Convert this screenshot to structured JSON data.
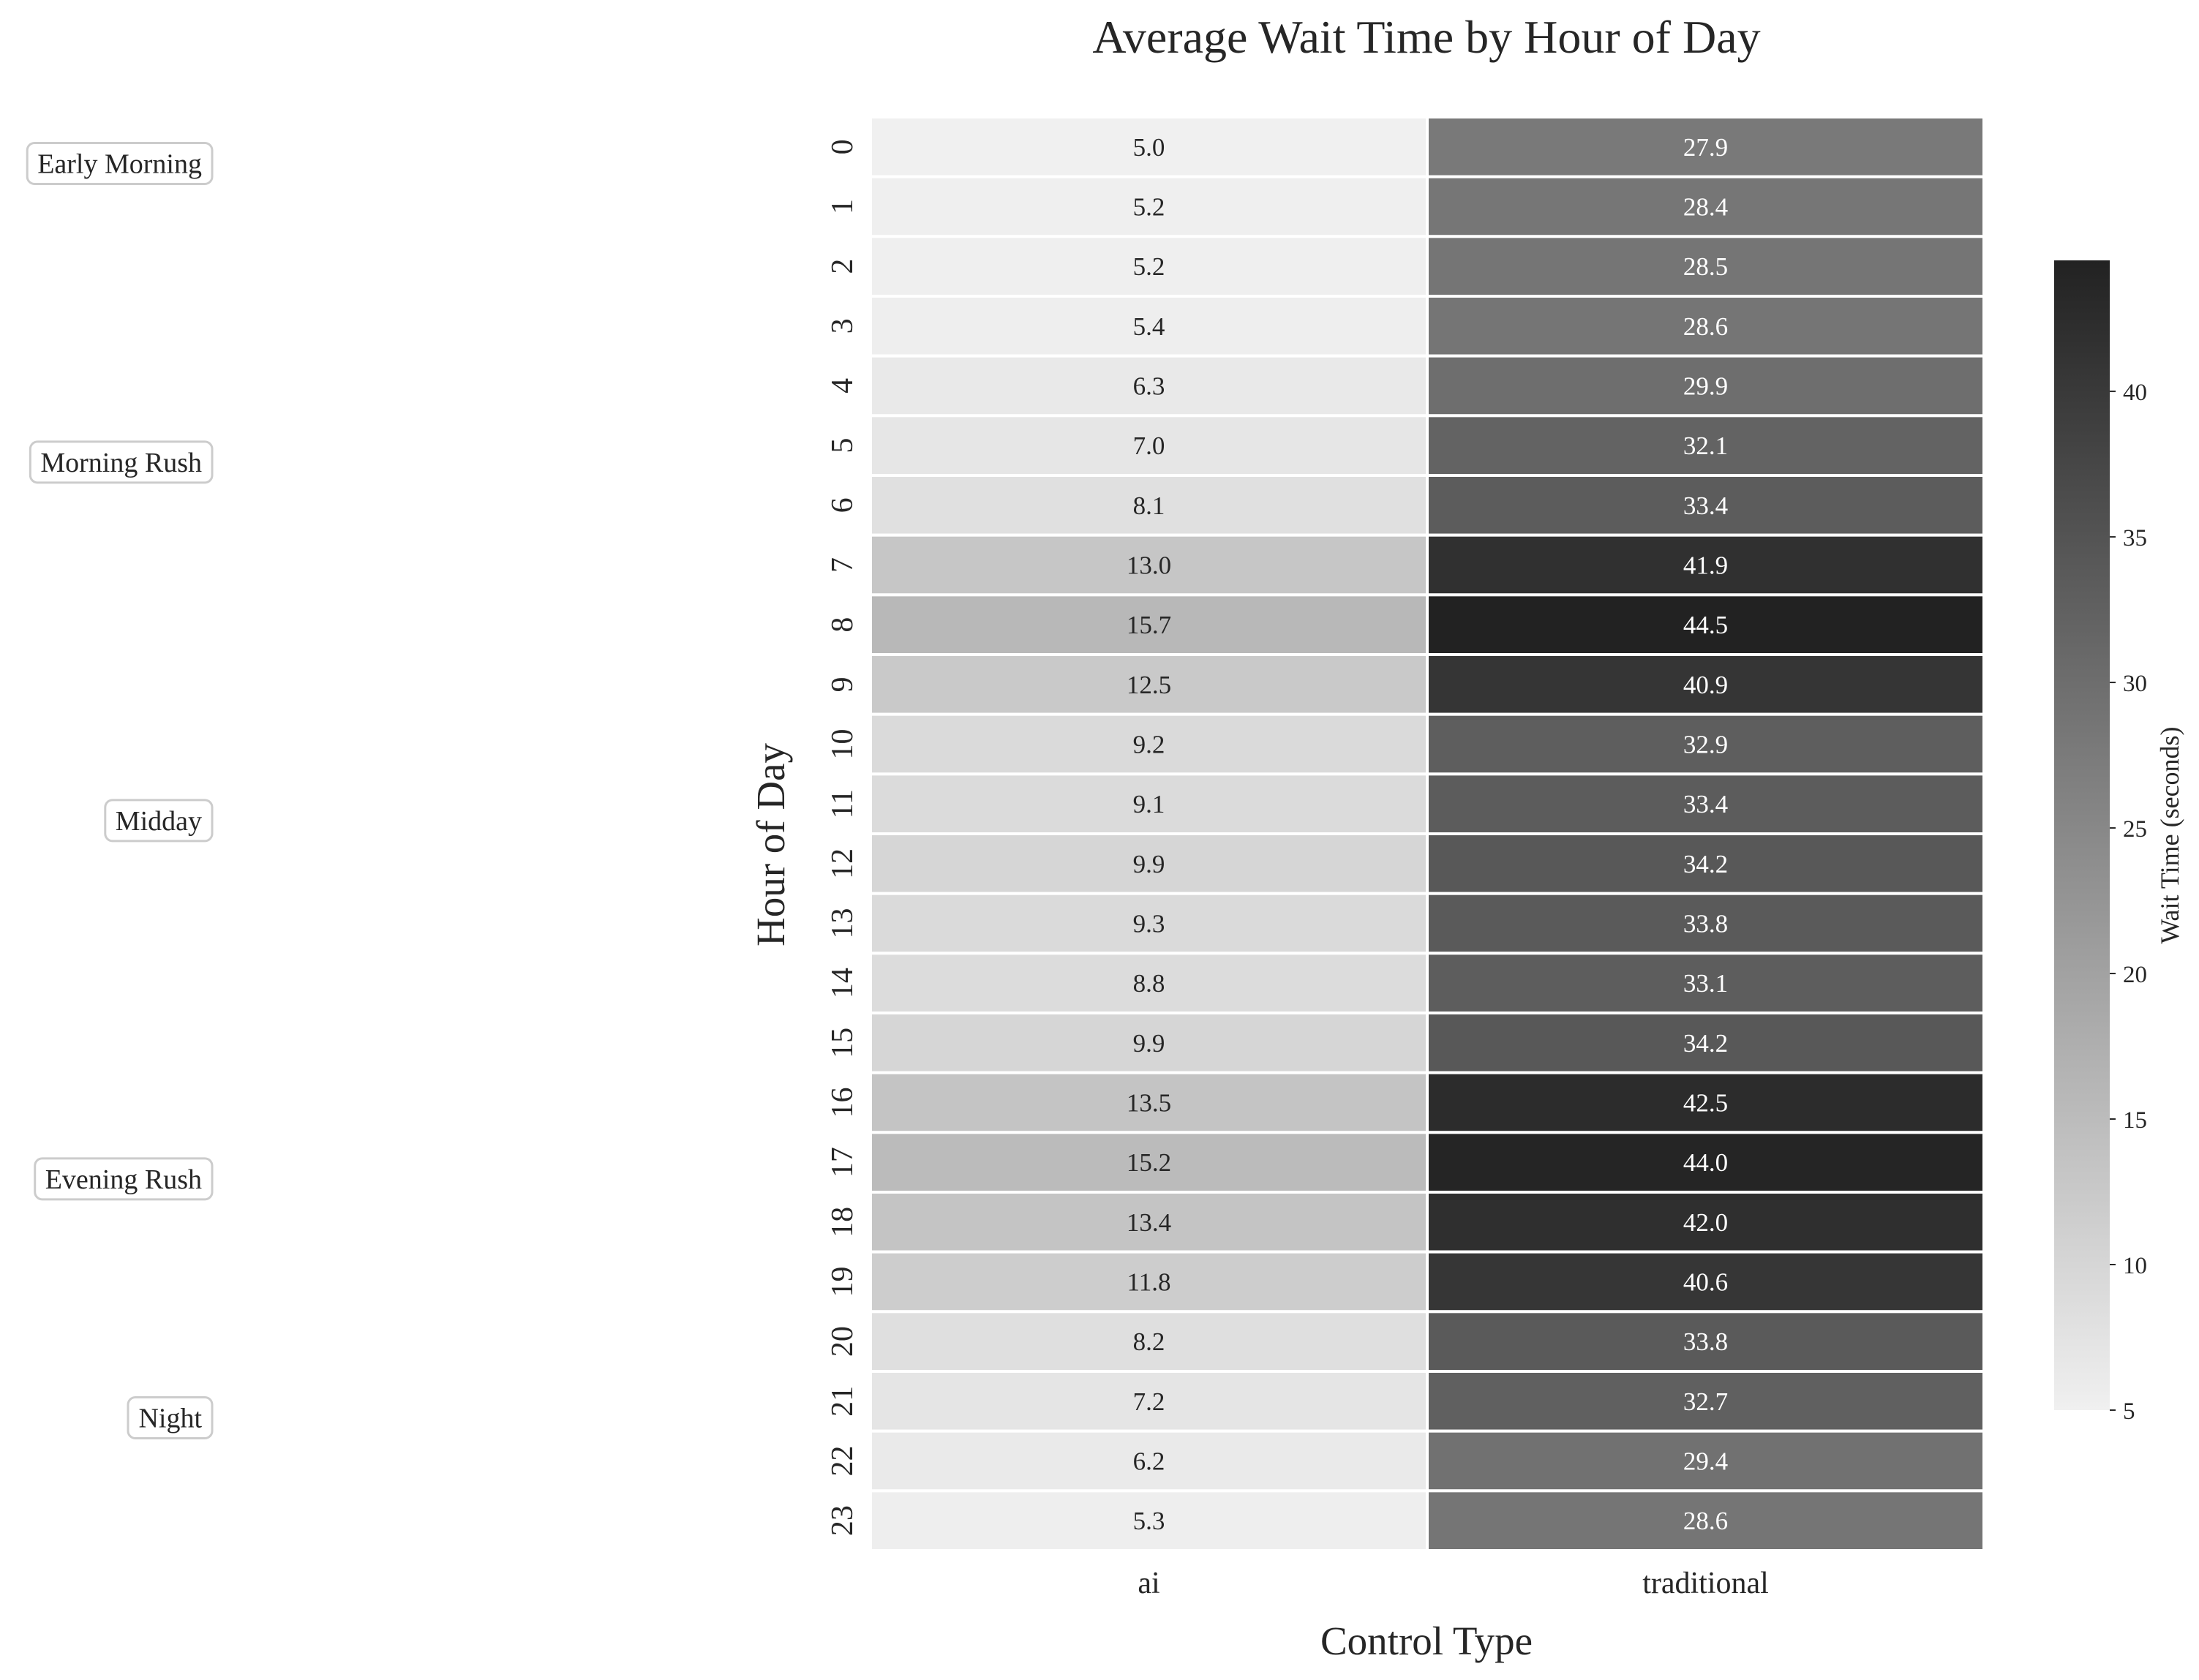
{
  "chart_data": {
    "type": "heatmap",
    "title": "Average Wait Time by Hour of Day",
    "xlabel": "Control Type",
    "ylabel": "Hour of Day",
    "colorbar_label": "Wait Time (seconds)",
    "colorbar_range": [
      5,
      44.5
    ],
    "colorbar_ticks": [
      5,
      10,
      15,
      20,
      25,
      30,
      35,
      40
    ],
    "colormap": {
      "low": "#f0f0f0",
      "high": "#222222"
    },
    "grid": false,
    "columns": [
      "ai",
      "traditional"
    ],
    "rows": [
      "0",
      "1",
      "2",
      "3",
      "4",
      "5",
      "6",
      "7",
      "8",
      "9",
      "10",
      "11",
      "12",
      "13",
      "14",
      "15",
      "16",
      "17",
      "18",
      "19",
      "20",
      "21",
      "22",
      "23"
    ],
    "values": [
      [
        5.0,
        27.9
      ],
      [
        5.2,
        28.4
      ],
      [
        5.2,
        28.5
      ],
      [
        5.4,
        28.6
      ],
      [
        6.3,
        29.9
      ],
      [
        7.0,
        32.1
      ],
      [
        8.1,
        33.4
      ],
      [
        13.0,
        41.9
      ],
      [
        15.7,
        44.5
      ],
      [
        12.5,
        40.9
      ],
      [
        9.2,
        32.9
      ],
      [
        9.1,
        33.4
      ],
      [
        9.9,
        34.2
      ],
      [
        9.3,
        33.8
      ],
      [
        8.8,
        33.1
      ],
      [
        9.9,
        34.2
      ],
      [
        13.5,
        42.5
      ],
      [
        15.2,
        44.0
      ],
      [
        13.4,
        42.0
      ],
      [
        11.8,
        40.6
      ],
      [
        8.2,
        33.8
      ],
      [
        7.2,
        32.7
      ],
      [
        6.2,
        29.4
      ],
      [
        5.3,
        28.6
      ]
    ],
    "annotations": [
      {
        "text": "Early Morning",
        "hour": 0.4
      },
      {
        "text": "Morning Rush",
        "hour": 5.4
      },
      {
        "text": "Midday",
        "hour": 11.4
      },
      {
        "text": "Evening Rush",
        "hour": 17.4
      },
      {
        "text": "Night",
        "hour": 21.4
      }
    ]
  }
}
